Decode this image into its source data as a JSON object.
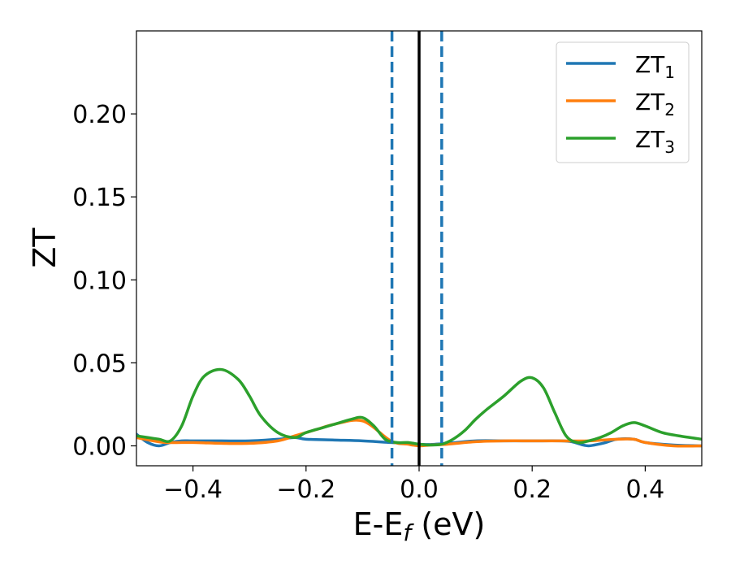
{
  "chart_data": {
    "type": "line",
    "xlabel": {
      "main": "E-E",
      "sub": "f",
      "suffix": " (eV)"
    },
    "ylabel": "ZT",
    "xlim": [
      -0.5,
      0.5
    ],
    "ylim": [
      -0.012,
      0.25
    ],
    "xticks": [
      -0.4,
      -0.2,
      0.0,
      0.2,
      0.4
    ],
    "xtick_labels": [
      "−0.4",
      "−0.2",
      "0.0",
      "0.2",
      "0.4"
    ],
    "yticks": [
      0.0,
      0.05,
      0.1,
      0.15,
      0.2
    ],
    "ytick_labels": [
      "0.00",
      "0.05",
      "0.10",
      "0.15",
      "0.20"
    ],
    "grid": false,
    "legend_position": "top-right",
    "vlines": [
      {
        "x": 0.0,
        "color": "#000000",
        "style": "solid"
      },
      {
        "x": -0.048,
        "color": "#1f77b4",
        "style": "dashed"
      },
      {
        "x": 0.04,
        "color": "#1f77b4",
        "style": "dashed"
      }
    ],
    "series": [
      {
        "name": "ZT",
        "name_sub": "1",
        "color": "#1f77b4",
        "x": [
          -0.5,
          -0.48,
          -0.46,
          -0.44,
          -0.42,
          -0.4,
          -0.35,
          -0.3,
          -0.25,
          -0.22,
          -0.2,
          -0.15,
          -0.1,
          -0.05,
          0.0,
          0.02,
          0.05,
          0.1,
          0.15,
          0.2,
          0.25,
          0.27,
          0.29,
          0.3,
          0.31,
          0.33,
          0.35,
          0.38,
          0.4,
          0.45,
          0.5
        ],
        "y": [
          0.007,
          0.002,
          0.0,
          0.002,
          0.003,
          0.003,
          0.003,
          0.003,
          0.004,
          0.005,
          0.004,
          0.0035,
          0.003,
          0.002,
          0.001,
          0.0008,
          0.0015,
          0.003,
          0.003,
          0.003,
          0.003,
          0.0025,
          0.0005,
          0.0,
          0.0005,
          0.002,
          0.004,
          0.004,
          0.002,
          0.0005,
          0.0
        ]
      },
      {
        "name": "ZT",
        "name_sub": "2",
        "color": "#ff7f0e",
        "x": [
          -0.5,
          -0.47,
          -0.45,
          -0.42,
          -0.4,
          -0.35,
          -0.3,
          -0.25,
          -0.22,
          -0.2,
          -0.18,
          -0.15,
          -0.1,
          -0.05,
          -0.02,
          0.0,
          0.02,
          0.05,
          0.1,
          0.15,
          0.2,
          0.25,
          0.3,
          0.35,
          0.38,
          0.4,
          0.45,
          0.5
        ],
        "y": [
          0.005,
          0.003,
          0.002,
          0.002,
          0.002,
          0.0015,
          0.0015,
          0.003,
          0.006,
          0.008,
          0.01,
          0.013,
          0.015,
          0.003,
          0.001,
          0.0,
          0.0005,
          0.001,
          0.0025,
          0.003,
          0.003,
          0.003,
          0.003,
          0.004,
          0.004,
          0.002,
          0.0,
          0.0
        ]
      },
      {
        "name": "ZT",
        "name_sub": "3",
        "color": "#2ca02c",
        "x": [
          -0.5,
          -0.48,
          -0.46,
          -0.44,
          -0.42,
          -0.4,
          -0.38,
          -0.35,
          -0.32,
          -0.3,
          -0.28,
          -0.25,
          -0.22,
          -0.2,
          -0.17,
          -0.15,
          -0.12,
          -0.1,
          -0.08,
          -0.06,
          -0.04,
          -0.02,
          0.0,
          0.02,
          0.04,
          0.06,
          0.08,
          0.1,
          0.12,
          0.15,
          0.18,
          0.2,
          0.22,
          0.24,
          0.26,
          0.28,
          0.3,
          0.32,
          0.34,
          0.36,
          0.38,
          0.4,
          0.43,
          0.46,
          0.5
        ],
        "y": [
          0.006,
          0.005,
          0.004,
          0.003,
          0.012,
          0.03,
          0.042,
          0.046,
          0.04,
          0.03,
          0.018,
          0.008,
          0.005,
          0.008,
          0.011,
          0.013,
          0.016,
          0.017,
          0.012,
          0.004,
          0.002,
          0.002,
          0.001,
          0.0005,
          0.001,
          0.004,
          0.009,
          0.016,
          0.022,
          0.03,
          0.039,
          0.041,
          0.035,
          0.02,
          0.006,
          0.002,
          0.003,
          0.005,
          0.008,
          0.012,
          0.014,
          0.012,
          0.008,
          0.006,
          0.004
        ]
      }
    ]
  }
}
